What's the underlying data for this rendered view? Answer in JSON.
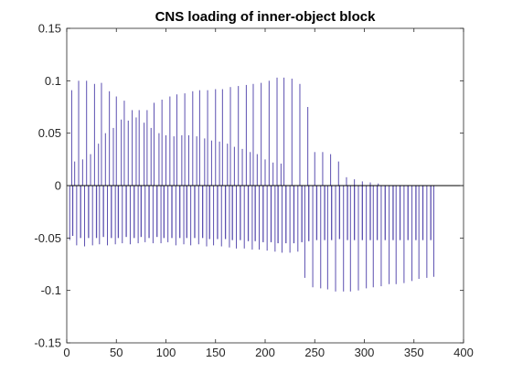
{
  "chart_data": {
    "type": "line",
    "title": "CNS loading of inner-object block",
    "xlabel": "",
    "ylabel": "",
    "xlim": [
      0,
      400
    ],
    "ylim": [
      -0.15,
      0.15
    ],
    "xticks": [
      0,
      50,
      100,
      150,
      200,
      250,
      300,
      350,
      400
    ],
    "yticks": [
      -0.15,
      -0.1,
      -0.05,
      0,
      0.05,
      0.1,
      0.15
    ],
    "xtick_labels": [
      "0",
      "50",
      "100",
      "150",
      "200",
      "250",
      "300",
      "350",
      "400"
    ],
    "ytick_labels": [
      "-0.15",
      "-0.1",
      "-0.05",
      "0",
      "0.05",
      "0.1",
      "0.15"
    ],
    "grid": false,
    "box": true,
    "zero_line": true,
    "line_color": "#5b4fb0",
    "zero_line_color": "#000000",
    "series": [
      {
        "spikes": [
          {
            "x": 5,
            "y": 0.091
          },
          {
            "x": 12,
            "y": 0.1
          },
          {
            "x": 20,
            "y": 0.1
          },
          {
            "x": 28,
            "y": 0.097
          },
          {
            "x": 35,
            "y": 0.098
          },
          {
            "x": 43,
            "y": 0.09
          },
          {
            "x": 50,
            "y": 0.085
          },
          {
            "x": 58,
            "y": 0.081
          },
          {
            "x": 66,
            "y": 0.072
          },
          {
            "x": 73,
            "y": 0.072
          },
          {
            "x": 81,
            "y": 0.072
          },
          {
            "x": 88,
            "y": 0.079
          },
          {
            "x": 96,
            "y": 0.082
          },
          {
            "x": 104,
            "y": 0.085
          },
          {
            "x": 111,
            "y": 0.087
          },
          {
            "x": 119,
            "y": 0.088
          },
          {
            "x": 127,
            "y": 0.09
          },
          {
            "x": 134,
            "y": 0.091
          },
          {
            "x": 142,
            "y": 0.091
          },
          {
            "x": 150,
            "y": 0.092
          },
          {
            "x": 157,
            "y": 0.092
          },
          {
            "x": 165,
            "y": 0.094
          },
          {
            "x": 173,
            "y": 0.095
          },
          {
            "x": 181,
            "y": 0.096
          },
          {
            "x": 188,
            "y": 0.097
          },
          {
            "x": 196,
            "y": 0.098
          },
          {
            "x": 204,
            "y": 0.1
          },
          {
            "x": 212,
            "y": 0.103
          },
          {
            "x": 219,
            "y": 0.103
          },
          {
            "x": 227,
            "y": 0.102
          },
          {
            "x": 235,
            "y": 0.097
          },
          {
            "x": 243,
            "y": 0.075
          },
          {
            "x": 250,
            "y": 0.032
          },
          {
            "x": 258,
            "y": 0.032
          },
          {
            "x": 266,
            "y": 0.03
          },
          {
            "x": 274,
            "y": 0.023
          }
        ],
        "inner_spikes": [
          {
            "x": 8,
            "y": 0.023
          },
          {
            "x": 16,
            "y": 0.025
          },
          {
            "x": 24,
            "y": 0.03
          },
          {
            "x": 32,
            "y": 0.04
          },
          {
            "x": 39,
            "y": 0.05
          },
          {
            "x": 47,
            "y": 0.055
          },
          {
            "x": 55,
            "y": 0.063
          },
          {
            "x": 62,
            "y": 0.062
          },
          {
            "x": 70,
            "y": 0.065
          },
          {
            "x": 78,
            "y": 0.06
          },
          {
            "x": 85,
            "y": 0.055
          },
          {
            "x": 93,
            "y": 0.05
          },
          {
            "x": 100,
            "y": 0.048
          },
          {
            "x": 108,
            "y": 0.047
          },
          {
            "x": 116,
            "y": 0.048
          },
          {
            "x": 123,
            "y": 0.048
          },
          {
            "x": 131,
            "y": 0.047
          },
          {
            "x": 139,
            "y": 0.045
          },
          {
            "x": 146,
            "y": 0.043
          },
          {
            "x": 154,
            "y": 0.042
          },
          {
            "x": 162,
            "y": 0.04
          },
          {
            "x": 169,
            "y": 0.037
          },
          {
            "x": 177,
            "y": 0.035
          },
          {
            "x": 185,
            "y": 0.032
          },
          {
            "x": 192,
            "y": 0.03
          },
          {
            "x": 200,
            "y": 0.025
          },
          {
            "x": 208,
            "y": 0.022
          },
          {
            "x": 216,
            "y": 0.021
          }
        ],
        "dips": [
          {
            "x": 3,
            "y": -0.052
          },
          {
            "x": 10,
            "y": -0.057
          },
          {
            "x": 18,
            "y": -0.058
          },
          {
            "x": 26,
            "y": -0.057
          },
          {
            "x": 33,
            "y": -0.056
          },
          {
            "x": 41,
            "y": -0.057
          },
          {
            "x": 49,
            "y": -0.056
          },
          {
            "x": 56,
            "y": -0.055
          },
          {
            "x": 64,
            "y": -0.056
          },
          {
            "x": 72,
            "y": -0.055
          },
          {
            "x": 79,
            "y": -0.054
          },
          {
            "x": 87,
            "y": -0.055
          },
          {
            "x": 95,
            "y": -0.055
          },
          {
            "x": 102,
            "y": -0.054
          },
          {
            "x": 110,
            "y": -0.057
          },
          {
            "x": 118,
            "y": -0.056
          },
          {
            "x": 125,
            "y": -0.057
          },
          {
            "x": 133,
            "y": -0.056
          },
          {
            "x": 141,
            "y": -0.058
          },
          {
            "x": 148,
            "y": -0.057
          },
          {
            "x": 156,
            "y": -0.058
          },
          {
            "x": 164,
            "y": -0.059
          },
          {
            "x": 171,
            "y": -0.06
          },
          {
            "x": 179,
            "y": -0.06
          },
          {
            "x": 187,
            "y": -0.061
          },
          {
            "x": 194,
            "y": -0.061
          },
          {
            "x": 202,
            "y": -0.062
          },
          {
            "x": 210,
            "y": -0.063
          },
          {
            "x": 217,
            "y": -0.064
          },
          {
            "x": 225,
            "y": -0.064
          },
          {
            "x": 233,
            "y": -0.063
          },
          {
            "x": 240,
            "y": -0.088
          },
          {
            "x": 248,
            "y": -0.097
          },
          {
            "x": 256,
            "y": -0.098
          },
          {
            "x": 263,
            "y": -0.099
          },
          {
            "x": 271,
            "y": -0.101
          },
          {
            "x": 279,
            "y": -0.101
          },
          {
            "x": 286,
            "y": -0.101
          },
          {
            "x": 294,
            "y": -0.1
          },
          {
            "x": 302,
            "y": -0.098
          },
          {
            "x": 309,
            "y": -0.097
          },
          {
            "x": 317,
            "y": -0.096
          },
          {
            "x": 325,
            "y": -0.094
          },
          {
            "x": 332,
            "y": -0.094
          },
          {
            "x": 340,
            "y": -0.093
          },
          {
            "x": 348,
            "y": -0.091
          },
          {
            "x": 355,
            "y": -0.089
          },
          {
            "x": 363,
            "y": -0.088
          },
          {
            "x": 370,
            "y": -0.087
          }
        ],
        "inner_dips": [
          {
            "x": 6,
            "y": -0.048
          },
          {
            "x": 14,
            "y": -0.05
          },
          {
            "x": 22,
            "y": -0.05
          },
          {
            "x": 30,
            "y": -0.05
          },
          {
            "x": 37,
            "y": -0.049
          },
          {
            "x": 45,
            "y": -0.05
          },
          {
            "x": 52,
            "y": -0.05
          },
          {
            "x": 60,
            "y": -0.049
          },
          {
            "x": 68,
            "y": -0.05
          },
          {
            "x": 75,
            "y": -0.049
          },
          {
            "x": 83,
            "y": -0.05
          },
          {
            "x": 91,
            "y": -0.049
          },
          {
            "x": 98,
            "y": -0.05
          },
          {
            "x": 106,
            "y": -0.05
          },
          {
            "x": 114,
            "y": -0.05
          },
          {
            "x": 121,
            "y": -0.05
          },
          {
            "x": 129,
            "y": -0.05
          },
          {
            "x": 137,
            "y": -0.05
          },
          {
            "x": 144,
            "y": -0.051
          },
          {
            "x": 152,
            "y": -0.051
          },
          {
            "x": 160,
            "y": -0.051
          },
          {
            "x": 167,
            "y": -0.052
          },
          {
            "x": 175,
            "y": -0.052
          },
          {
            "x": 183,
            "y": -0.053
          },
          {
            "x": 190,
            "y": -0.053
          },
          {
            "x": 198,
            "y": -0.054
          },
          {
            "x": 206,
            "y": -0.054
          },
          {
            "x": 213,
            "y": -0.055
          },
          {
            "x": 221,
            "y": -0.055
          },
          {
            "x": 229,
            "y": -0.055
          },
          {
            "x": 237,
            "y": -0.054
          },
          {
            "x": 244,
            "y": -0.053
          },
          {
            "x": 252,
            "y": -0.052
          },
          {
            "x": 260,
            "y": -0.052
          },
          {
            "x": 267,
            "y": -0.052
          },
          {
            "x": 275,
            "y": -0.051
          },
          {
            "x": 283,
            "y": -0.052
          },
          {
            "x": 290,
            "y": -0.052
          },
          {
            "x": 298,
            "y": -0.052
          },
          {
            "x": 306,
            "y": -0.052
          },
          {
            "x": 313,
            "y": -0.052
          },
          {
            "x": 321,
            "y": -0.052
          },
          {
            "x": 329,
            "y": -0.052
          },
          {
            "x": 336,
            "y": -0.052
          },
          {
            "x": 344,
            "y": -0.052
          },
          {
            "x": 352,
            "y": -0.052
          },
          {
            "x": 359,
            "y": -0.052
          },
          {
            "x": 367,
            "y": -0.052
          }
        ],
        "small_spikes": [
          {
            "x": 282,
            "y": 0.008
          },
          {
            "x": 290,
            "y": 0.006
          },
          {
            "x": 298,
            "y": 0.004
          },
          {
            "x": 306,
            "y": 0.003
          },
          {
            "x": 314,
            "y": 0.002
          }
        ]
      }
    ]
  }
}
